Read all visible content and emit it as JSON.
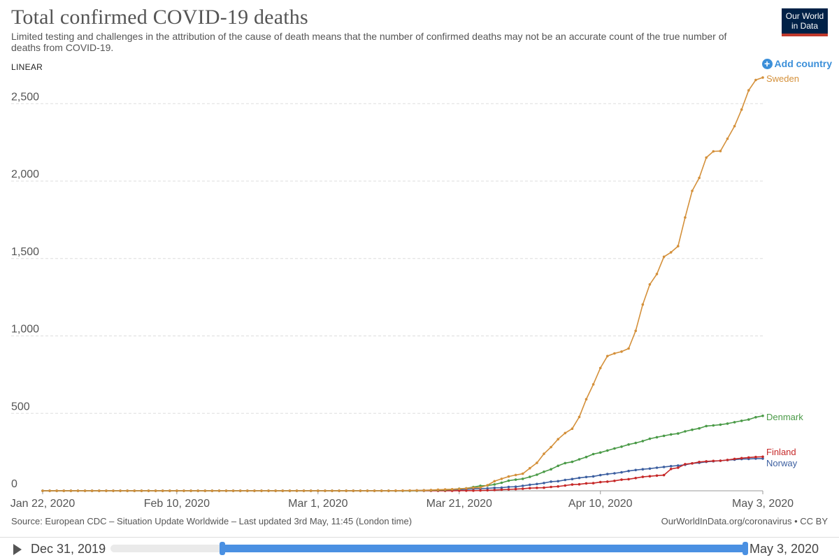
{
  "header": {
    "title": "Total confirmed COVID-19 deaths",
    "subtitle": "Limited testing and challenges in the attribution of the cause of death means that the number of confirmed deaths may not be an accurate count of the true number of deaths from COVID-19.",
    "logo_line1": "Our World",
    "logo_line2": "in Data"
  },
  "controls": {
    "scale": "LINEAR",
    "add_country": "Add country"
  },
  "footer": {
    "source": "Source: European CDC – Situation Update Worldwide – Last updated 3rd May, 11:45 (London time)",
    "link": "OurWorldInData.org/coronavirus • CC BY"
  },
  "timeline": {
    "start_label": "Dec 31, 2019",
    "end_label": "May 3, 2020",
    "selected_start_fraction": 0.176,
    "selected_end_fraction": 1.0
  },
  "chart_data": {
    "type": "line",
    "title": "Total confirmed COVID-19 deaths",
    "xlabel": "",
    "ylabel": "",
    "x_start": "2020-01-22",
    "x_end": "2020-05-03",
    "xticks": [
      "Jan 22, 2020",
      "Feb 10, 2020",
      "Mar 1, 2020",
      "Mar 21, 2020",
      "Apr 10, 2020",
      "May 3, 2020"
    ],
    "ylim": [
      0,
      2700
    ],
    "yticks": [
      0,
      500,
      1000,
      1500,
      2000,
      2500
    ],
    "ytick_labels": [
      "0",
      "500",
      "1,000",
      "1,500",
      "2,000",
      "2,500"
    ],
    "grid": true,
    "legend": "labels at line ends (right)",
    "series": [
      {
        "name": "Sweden",
        "color": "#d4903a",
        "points": [
          [
            "2020-01-22",
            0
          ],
          [
            "2020-03-11",
            0
          ],
          [
            "2020-03-12",
            1
          ],
          [
            "2020-03-14",
            2
          ],
          [
            "2020-03-16",
            3
          ],
          [
            "2020-03-18",
            7
          ],
          [
            "2020-03-20",
            10
          ],
          [
            "2020-03-21",
            12
          ],
          [
            "2020-03-22",
            16
          ],
          [
            "2020-03-23",
            20
          ],
          [
            "2020-03-24",
            21
          ],
          [
            "2020-03-25",
            36
          ],
          [
            "2020-03-26",
            62
          ],
          [
            "2020-03-27",
            77
          ],
          [
            "2020-03-28",
            92
          ],
          [
            "2020-03-29",
            102
          ],
          [
            "2020-03-30",
            110
          ],
          [
            "2020-03-31",
            146
          ],
          [
            "2020-04-01",
            180
          ],
          [
            "2020-04-02",
            239
          ],
          [
            "2020-04-03",
            282
          ],
          [
            "2020-04-04",
            333
          ],
          [
            "2020-04-05",
            373
          ],
          [
            "2020-04-06",
            401
          ],
          [
            "2020-04-07",
            477
          ],
          [
            "2020-04-08",
            591
          ],
          [
            "2020-04-09",
            687
          ],
          [
            "2020-04-10",
            793
          ],
          [
            "2020-04-11",
            870
          ],
          [
            "2020-04-12",
            887
          ],
          [
            "2020-04-13",
            899
          ],
          [
            "2020-04-14",
            919
          ],
          [
            "2020-04-15",
            1033
          ],
          [
            "2020-04-16",
            1203
          ],
          [
            "2020-04-17",
            1333
          ],
          [
            "2020-04-18",
            1400
          ],
          [
            "2020-04-19",
            1511
          ],
          [
            "2020-04-20",
            1540
          ],
          [
            "2020-04-21",
            1580
          ],
          [
            "2020-04-22",
            1765
          ],
          [
            "2020-04-23",
            1937
          ],
          [
            "2020-04-24",
            2021
          ],
          [
            "2020-04-25",
            2152
          ],
          [
            "2020-04-26",
            2192
          ],
          [
            "2020-04-27",
            2194
          ],
          [
            "2020-04-28",
            2274
          ],
          [
            "2020-04-29",
            2355
          ],
          [
            "2020-04-30",
            2462
          ],
          [
            "2020-05-01",
            2586
          ],
          [
            "2020-05-02",
            2653
          ],
          [
            "2020-05-03",
            2669
          ]
        ]
      },
      {
        "name": "Denmark",
        "color": "#4a9a47",
        "points": [
          [
            "2020-01-22",
            0
          ],
          [
            "2020-03-13",
            0
          ],
          [
            "2020-03-15",
            1
          ],
          [
            "2020-03-17",
            3
          ],
          [
            "2020-03-19",
            6
          ],
          [
            "2020-03-20",
            9
          ],
          [
            "2020-03-21",
            13
          ],
          [
            "2020-03-22",
            16
          ],
          [
            "2020-03-23",
            24
          ],
          [
            "2020-03-24",
            32
          ],
          [
            "2020-03-25",
            34
          ],
          [
            "2020-03-26",
            41
          ],
          [
            "2020-03-27",
            52
          ],
          [
            "2020-03-28",
            65
          ],
          [
            "2020-03-29",
            72
          ],
          [
            "2020-03-30",
            77
          ],
          [
            "2020-03-31",
            90
          ],
          [
            "2020-04-01",
            104
          ],
          [
            "2020-04-02",
            123
          ],
          [
            "2020-04-03",
            139
          ],
          [
            "2020-04-04",
            161
          ],
          [
            "2020-04-05",
            179
          ],
          [
            "2020-04-06",
            187
          ],
          [
            "2020-04-07",
            203
          ],
          [
            "2020-04-08",
            218
          ],
          [
            "2020-04-09",
            237
          ],
          [
            "2020-04-10",
            247
          ],
          [
            "2020-04-11",
            260
          ],
          [
            "2020-04-12",
            273
          ],
          [
            "2020-04-13",
            285
          ],
          [
            "2020-04-14",
            299
          ],
          [
            "2020-04-15",
            309
          ],
          [
            "2020-04-16",
            321
          ],
          [
            "2020-04-17",
            336
          ],
          [
            "2020-04-18",
            346
          ],
          [
            "2020-04-19",
            355
          ],
          [
            "2020-04-20",
            364
          ],
          [
            "2020-04-21",
            370
          ],
          [
            "2020-04-22",
            384
          ],
          [
            "2020-04-23",
            394
          ],
          [
            "2020-04-24",
            403
          ],
          [
            "2020-04-25",
            418
          ],
          [
            "2020-04-26",
            422
          ],
          [
            "2020-04-27",
            427
          ],
          [
            "2020-04-28",
            434
          ],
          [
            "2020-04-29",
            443
          ],
          [
            "2020-04-30",
            452
          ],
          [
            "2020-05-01",
            460
          ],
          [
            "2020-05-02",
            475
          ],
          [
            "2020-05-03",
            484
          ]
        ]
      },
      {
        "name": "Finland",
        "color": "#c62828",
        "points": [
          [
            "2020-01-22",
            0
          ],
          [
            "2020-03-20",
            0
          ],
          [
            "2020-03-21",
            1
          ],
          [
            "2020-03-23",
            1
          ],
          [
            "2020-03-25",
            3
          ],
          [
            "2020-03-26",
            5
          ],
          [
            "2020-03-27",
            7
          ],
          [
            "2020-03-28",
            9
          ],
          [
            "2020-03-29",
            11
          ],
          [
            "2020-03-30",
            13
          ],
          [
            "2020-03-31",
            17
          ],
          [
            "2020-04-01",
            19
          ],
          [
            "2020-04-02",
            20
          ],
          [
            "2020-04-03",
            25
          ],
          [
            "2020-04-04",
            28
          ],
          [
            "2020-04-05",
            34
          ],
          [
            "2020-04-06",
            40
          ],
          [
            "2020-04-07",
            42
          ],
          [
            "2020-04-08",
            48
          ],
          [
            "2020-04-09",
            49
          ],
          [
            "2020-04-10",
            56
          ],
          [
            "2020-04-11",
            59
          ],
          [
            "2020-04-12",
            64
          ],
          [
            "2020-04-13",
            72
          ],
          [
            "2020-04-14",
            75
          ],
          [
            "2020-04-15",
            82
          ],
          [
            "2020-04-16",
            90
          ],
          [
            "2020-04-17",
            94
          ],
          [
            "2020-04-18",
            98
          ],
          [
            "2020-04-19",
            101
          ],
          [
            "2020-04-20",
            141
          ],
          [
            "2020-04-21",
            149
          ],
          [
            "2020-04-22",
            172
          ],
          [
            "2020-04-23",
            177
          ],
          [
            "2020-04-24",
            186
          ],
          [
            "2020-04-25",
            190
          ],
          [
            "2020-04-26",
            193
          ],
          [
            "2020-04-27",
            194
          ],
          [
            "2020-04-28",
            199
          ],
          [
            "2020-04-29",
            206
          ],
          [
            "2020-04-30",
            211
          ],
          [
            "2020-05-01",
            215
          ],
          [
            "2020-05-02",
            218
          ],
          [
            "2020-05-03",
            220
          ]
        ]
      },
      {
        "name": "Norway",
        "color": "#3c5fa0",
        "points": [
          [
            "2020-01-22",
            0
          ],
          [
            "2020-03-13",
            0
          ],
          [
            "2020-03-14",
            1
          ],
          [
            "2020-03-16",
            3
          ],
          [
            "2020-03-18",
            4
          ],
          [
            "2020-03-19",
            6
          ],
          [
            "2020-03-21",
            7
          ],
          [
            "2020-03-22",
            10
          ],
          [
            "2020-03-23",
            12
          ],
          [
            "2020-03-24",
            14
          ],
          [
            "2020-03-25",
            16
          ],
          [
            "2020-03-26",
            19
          ],
          [
            "2020-03-27",
            20
          ],
          [
            "2020-03-28",
            25
          ],
          [
            "2020-03-29",
            26
          ],
          [
            "2020-03-30",
            32
          ],
          [
            "2020-03-31",
            39
          ],
          [
            "2020-04-01",
            44
          ],
          [
            "2020-04-02",
            50
          ],
          [
            "2020-04-03",
            59
          ],
          [
            "2020-04-04",
            62
          ],
          [
            "2020-04-05",
            70
          ],
          [
            "2020-04-06",
            76
          ],
          [
            "2020-04-07",
            83
          ],
          [
            "2020-04-08",
            89
          ],
          [
            "2020-04-09",
            93
          ],
          [
            "2020-04-10",
            101
          ],
          [
            "2020-04-11",
            108
          ],
          [
            "2020-04-12",
            113
          ],
          [
            "2020-04-13",
            119
          ],
          [
            "2020-04-14",
            128
          ],
          [
            "2020-04-15",
            134
          ],
          [
            "2020-04-16",
            139
          ],
          [
            "2020-04-17",
            143
          ],
          [
            "2020-04-18",
            149
          ],
          [
            "2020-04-19",
            154
          ],
          [
            "2020-04-20",
            159
          ],
          [
            "2020-04-21",
            163
          ],
          [
            "2020-04-22",
            168
          ],
          [
            "2020-04-23",
            177
          ],
          [
            "2020-04-24",
            181
          ],
          [
            "2020-04-25",
            187
          ],
          [
            "2020-04-26",
            191
          ],
          [
            "2020-04-27",
            194
          ],
          [
            "2020-04-28",
            198
          ],
          [
            "2020-04-29",
            201
          ],
          [
            "2020-04-30",
            205
          ],
          [
            "2020-05-01",
            206
          ],
          [
            "2020-05-02",
            208
          ],
          [
            "2020-05-03",
            208
          ]
        ]
      }
    ]
  }
}
